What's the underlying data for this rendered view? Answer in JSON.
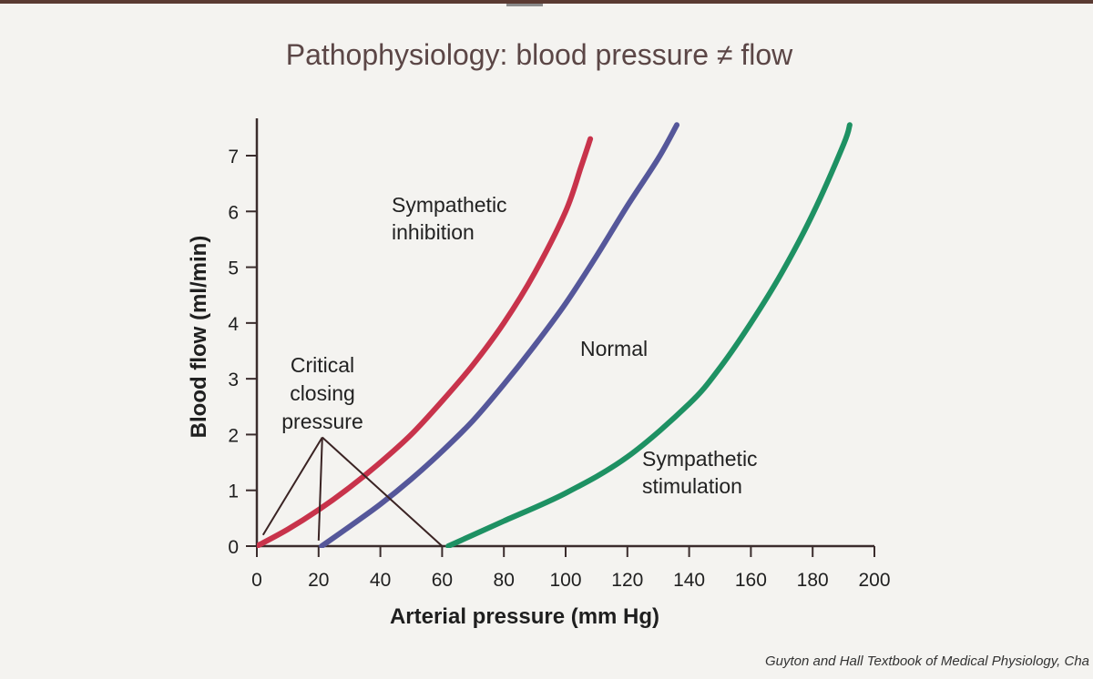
{
  "slide": {
    "title": "Pathophysiology: blood pressure ≠ flow",
    "citation": "Guyton and Hall Textbook of Medical Physiology, Cha"
  },
  "chart_data": {
    "type": "line",
    "title": "",
    "xlabel": "Arterial pressure (mm Hg)",
    "ylabel": "Blood flow (ml/min)",
    "xlim": [
      0,
      200
    ],
    "ylim": [
      0,
      7
    ],
    "x_ticks": [
      "0",
      "20",
      "40",
      "60",
      "80",
      "100",
      "120",
      "140",
      "160",
      "180",
      "200"
    ],
    "y_ticks": [
      "0",
      "1",
      "2",
      "3",
      "4",
      "5",
      "6",
      "7"
    ],
    "grid": false,
    "series": [
      {
        "name": "Sympathetic inhibition",
        "color": "#c8334b",
        "points": [
          [
            0,
            0
          ],
          [
            10,
            0.3
          ],
          [
            20,
            0.65
          ],
          [
            30,
            1.05
          ],
          [
            40,
            1.5
          ],
          [
            50,
            2.0
          ],
          [
            60,
            2.6
          ],
          [
            70,
            3.25
          ],
          [
            80,
            4.0
          ],
          [
            90,
            4.9
          ],
          [
            100,
            6.0
          ],
          [
            105,
            6.8
          ],
          [
            108,
            7.3
          ]
        ]
      },
      {
        "name": "Normal",
        "color": "#55579a",
        "points": [
          [
            21,
            0
          ],
          [
            30,
            0.35
          ],
          [
            40,
            0.75
          ],
          [
            50,
            1.2
          ],
          [
            60,
            1.7
          ],
          [
            70,
            2.25
          ],
          [
            80,
            2.9
          ],
          [
            90,
            3.6
          ],
          [
            100,
            4.35
          ],
          [
            110,
            5.2
          ],
          [
            120,
            6.1
          ],
          [
            130,
            6.95
          ],
          [
            136,
            7.55
          ]
        ]
      },
      {
        "name": "Sympathetic stimulation",
        "color": "#1e9163",
        "points": [
          [
            62,
            0
          ],
          [
            70,
            0.2
          ],
          [
            80,
            0.45
          ],
          [
            100,
            0.95
          ],
          [
            120,
            1.6
          ],
          [
            140,
            2.55
          ],
          [
            150,
            3.2
          ],
          [
            160,
            4.0
          ],
          [
            170,
            4.9
          ],
          [
            180,
            5.95
          ],
          [
            190,
            7.2
          ],
          [
            192,
            7.55
          ]
        ]
      }
    ],
    "annotations": [
      {
        "lines": [
          "Sympathetic",
          "inhibition"
        ]
      },
      {
        "lines": [
          "Normal"
        ]
      },
      {
        "lines": [
          "Sympathetic",
          "stimulation"
        ]
      },
      {
        "lines": [
          "Critical",
          "closing",
          "pressure"
        ]
      }
    ],
    "critical_closing_pressure": {
      "apex": [
        20,
        1.95
      ],
      "targets": [
        [
          2,
          0.2
        ],
        [
          20,
          0.1
        ],
        [
          60,
          0
        ]
      ]
    }
  }
}
